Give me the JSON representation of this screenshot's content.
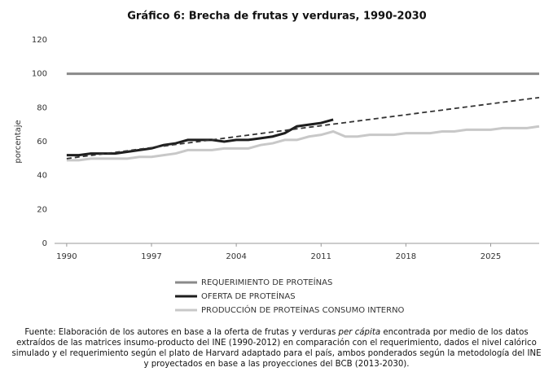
{
  "chart_data": {
    "type": "line",
    "title": "Gráfico 6: Brecha de frutas y verduras, 1990-2030",
    "y_label": "porcentaje",
    "x": [
      1990,
      1991,
      1992,
      1993,
      1994,
      1995,
      1996,
      1997,
      1998,
      1999,
      2000,
      2001,
      2002,
      2003,
      2004,
      2005,
      2006,
      2007,
      2008,
      2009,
      2010,
      2011,
      2012,
      2013,
      2014,
      2015,
      2016,
      2017,
      2018,
      2019,
      2020,
      2021,
      2022,
      2023,
      2024,
      2025,
      2026,
      2027,
      2028,
      2029
    ],
    "series": [
      {
        "name": "REQUERIMIENTO DE PROTEÍNAS",
        "color": "#8a8a8a",
        "values": [
          100,
          100,
          100,
          100,
          100,
          100,
          100,
          100,
          100,
          100,
          100,
          100,
          100,
          100,
          100,
          100,
          100,
          100,
          100,
          100,
          100,
          100,
          100,
          100,
          100,
          100,
          100,
          100,
          100,
          100,
          100,
          100,
          100,
          100,
          100,
          100,
          100,
          100,
          100,
          100
        ]
      },
      {
        "name": "OFERTA DE PROTEÍNAS",
        "color": "#1e1e1e",
        "values": [
          52,
          52,
          53,
          53,
          53,
          54,
          55,
          56,
          58,
          59,
          61,
          61,
          61,
          60,
          61,
          61,
          62,
          63,
          65,
          69,
          70,
          71,
          73,
          null,
          null,
          null,
          null,
          null,
          null,
          null,
          null,
          null,
          null,
          null,
          null,
          null,
          null,
          null,
          null,
          null
        ]
      },
      {
        "name": "PRODUCCIÓN DE PROTEÍNAS CONSUMO INTERNO",
        "color": "#c8c8c8",
        "values": [
          49,
          49,
          50,
          50,
          50,
          50,
          51,
          51,
          52,
          53,
          55,
          55,
          55,
          56,
          56,
          56,
          58,
          59,
          61,
          61,
          63,
          64,
          66,
          63,
          63,
          64,
          64,
          64,
          65,
          65,
          65,
          66,
          66,
          67,
          67,
          67,
          68,
          68,
          68,
          69
        ]
      }
    ],
    "trend": {
      "x": [
        1990,
        2029
      ],
      "values": [
        50,
        86
      ],
      "color": "#333333",
      "dashed": true
    },
    "xlim": [
      1989,
      2029
    ],
    "xticks": [
      1990,
      1997,
      2004,
      2011,
      2018,
      2025
    ],
    "ylim": [
      0,
      120
    ],
    "yticks": [
      0,
      20,
      40,
      60,
      80,
      100,
      120
    ],
    "grid": false,
    "legend": "bottom",
    "note": [
      "Fuente: Elaboración de los autores en base a la oferta de frutas y verduras ",
      "per cápita",
      " encontrada por medio de los datos extraídos de las matrices insumo-producto del INE (1990-2012) en comparación con el requerimiento, dados el nivel calórico simulado y el requerimiento según el plato de Harvard adaptado para el país, ambos ponderados según la metodología del INE y proyectados en base a las proyecciones del BCB (2013-2030)."
    ]
  }
}
